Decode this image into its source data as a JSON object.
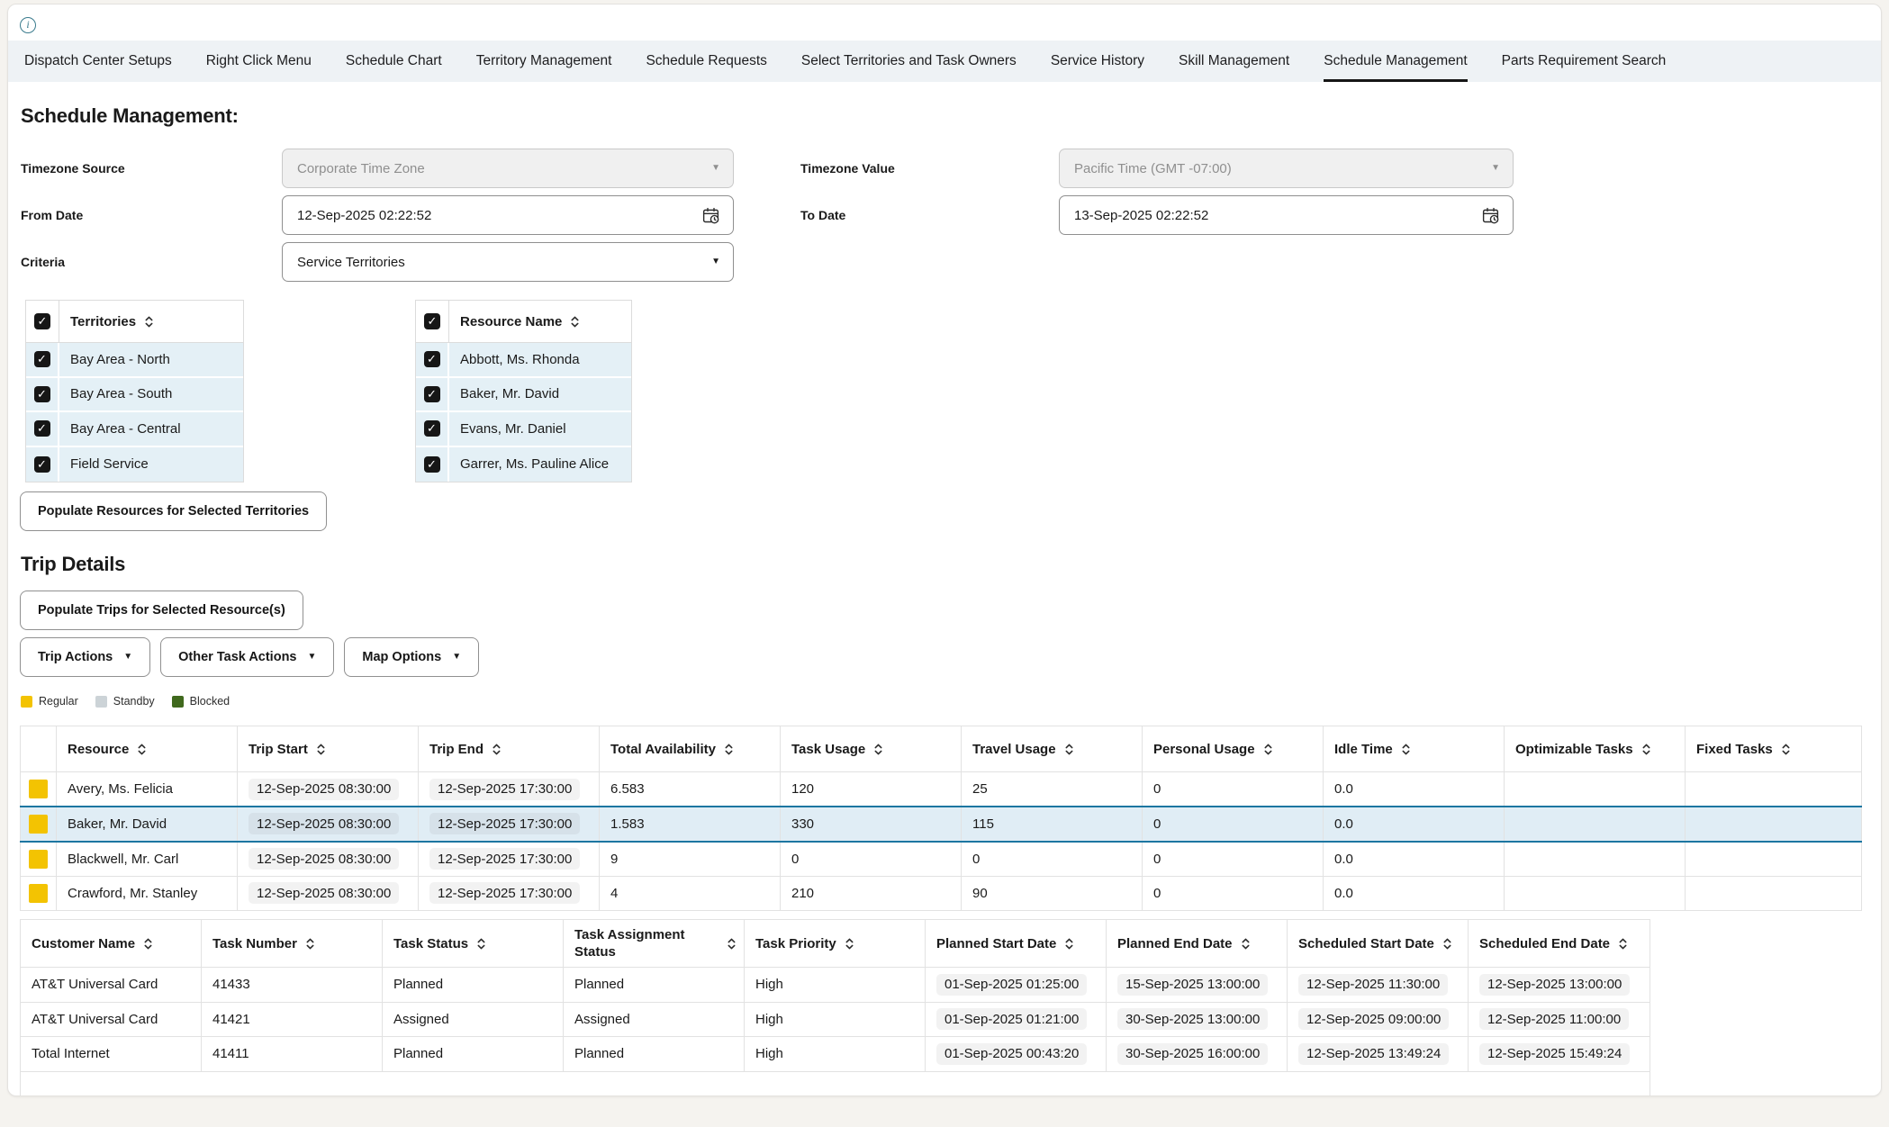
{
  "tab_bar": {
    "tabs": [
      "Dispatch Center Setups",
      "Right Click Menu",
      "Schedule Chart",
      "Territory Management",
      "Schedule Requests",
      "Select Territories and Task Owners",
      "Service History",
      "Skill Management",
      "Schedule Management",
      "Parts Requirement Search"
    ],
    "active": "Schedule Management"
  },
  "page": {
    "title": "Schedule Management:"
  },
  "form": {
    "timezone_source": {
      "label": "Timezone Source",
      "value": "Corporate Time Zone"
    },
    "timezone_value": {
      "label": "Timezone Value",
      "value": "Pacific Time (GMT -07:00)"
    },
    "from_date": {
      "label": "From Date",
      "value": "12-Sep-2025 02:22:52"
    },
    "to_date": {
      "label": "To Date",
      "value": "13-Sep-2025 02:22:52"
    },
    "criteria": {
      "label": "Criteria",
      "value": "Service Territories"
    }
  },
  "territories": {
    "header": "Territories",
    "rows": [
      "Bay Area - North",
      "Bay Area - South",
      "Bay Area - Central",
      "Field Service"
    ]
  },
  "resources": {
    "header": "Resource Name",
    "rows": [
      "Abbott, Ms. Rhonda",
      "Baker, Mr. David",
      "Evans, Mr. Daniel",
      "Garrer, Ms. Pauline Alice"
    ]
  },
  "buttons": {
    "populate_resources": "Populate Resources for Selected Territories",
    "populate_trips": "Populate Trips for Selected Resource(s)",
    "trip_actions": "Trip Actions",
    "other_task_actions": "Other Task Actions",
    "map_options": "Map Options"
  },
  "sections": {
    "trip_details": "Trip Details"
  },
  "legend": [
    {
      "label": "Regular",
      "color": "#f3c302"
    },
    {
      "label": "Standby",
      "color": "#ccd3d7"
    },
    {
      "label": "Blocked",
      "color": "#40691d"
    }
  ],
  "trip_table": {
    "columns": [
      "Resource",
      "Trip Start",
      "Trip End",
      "Total Availability",
      "Task Usage",
      "Travel Usage",
      "Personal Usage",
      "Idle Time",
      "Optimizable Tasks",
      "Fixed Tasks"
    ],
    "rows": [
      {
        "swatch": "#f3c302",
        "selected": false,
        "cells": [
          "Avery, Ms. Felicia",
          "12-Sep-2025 08:30:00",
          "12-Sep-2025 17:30:00",
          "6.583",
          "120",
          "25",
          "0",
          "0.0",
          "",
          ""
        ]
      },
      {
        "swatch": "#f3c302",
        "selected": true,
        "cells": [
          "Baker, Mr. David",
          "12-Sep-2025 08:30:00",
          "12-Sep-2025 17:30:00",
          "1.583",
          "330",
          "115",
          "0",
          "0.0",
          "",
          ""
        ]
      },
      {
        "swatch": "#f3c302",
        "selected": false,
        "cells": [
          "Blackwell, Mr. Carl",
          "12-Sep-2025 08:30:00",
          "12-Sep-2025 17:30:00",
          "9",
          "0",
          "0",
          "0",
          "0.0",
          "",
          ""
        ]
      },
      {
        "swatch": "#f3c302",
        "selected": false,
        "cells": [
          "Crawford, Mr. Stanley",
          "12-Sep-2025 08:30:00",
          "12-Sep-2025 17:30:00",
          "4",
          "210",
          "90",
          "0",
          "0.0",
          "",
          ""
        ]
      }
    ]
  },
  "task_table": {
    "columns": [
      "Customer Name",
      "Task Number",
      "Task Status",
      "Task Assignment Status",
      "Task Priority",
      "Planned Start Date",
      "Planned End Date",
      "Scheduled Start Date",
      "Scheduled End Date"
    ],
    "rows": [
      {
        "cells": [
          "AT&T Universal Card",
          "41433",
          "Planned",
          "Planned",
          "High",
          "01-Sep-2025 01:25:00",
          "15-Sep-2025 13:00:00",
          "12-Sep-2025 11:30:00",
          "12-Sep-2025 13:00:00"
        ]
      },
      {
        "cells": [
          "AT&T Universal Card",
          "41421",
          "Assigned",
          "Assigned",
          "High",
          "01-Sep-2025 01:21:00",
          "30-Sep-2025 13:00:00",
          "12-Sep-2025 09:00:00",
          "12-Sep-2025 11:00:00"
        ]
      },
      {
        "cells": [
          "Total Internet",
          "41411",
          "Planned",
          "Planned",
          "High",
          "01-Sep-2025 00:43:20",
          "30-Sep-2025 16:00:00",
          "12-Sep-2025 13:49:24",
          "12-Sep-2025 15:49:24"
        ]
      }
    ]
  },
  "colors": {
    "selected_row_bg": "#e0edf5",
    "selected_row_border": "#1c76a1",
    "check_row_bg": "#e4f0f6",
    "tab_bar_bg": "#eef2f5",
    "active_tab_underline": "#161616"
  }
}
